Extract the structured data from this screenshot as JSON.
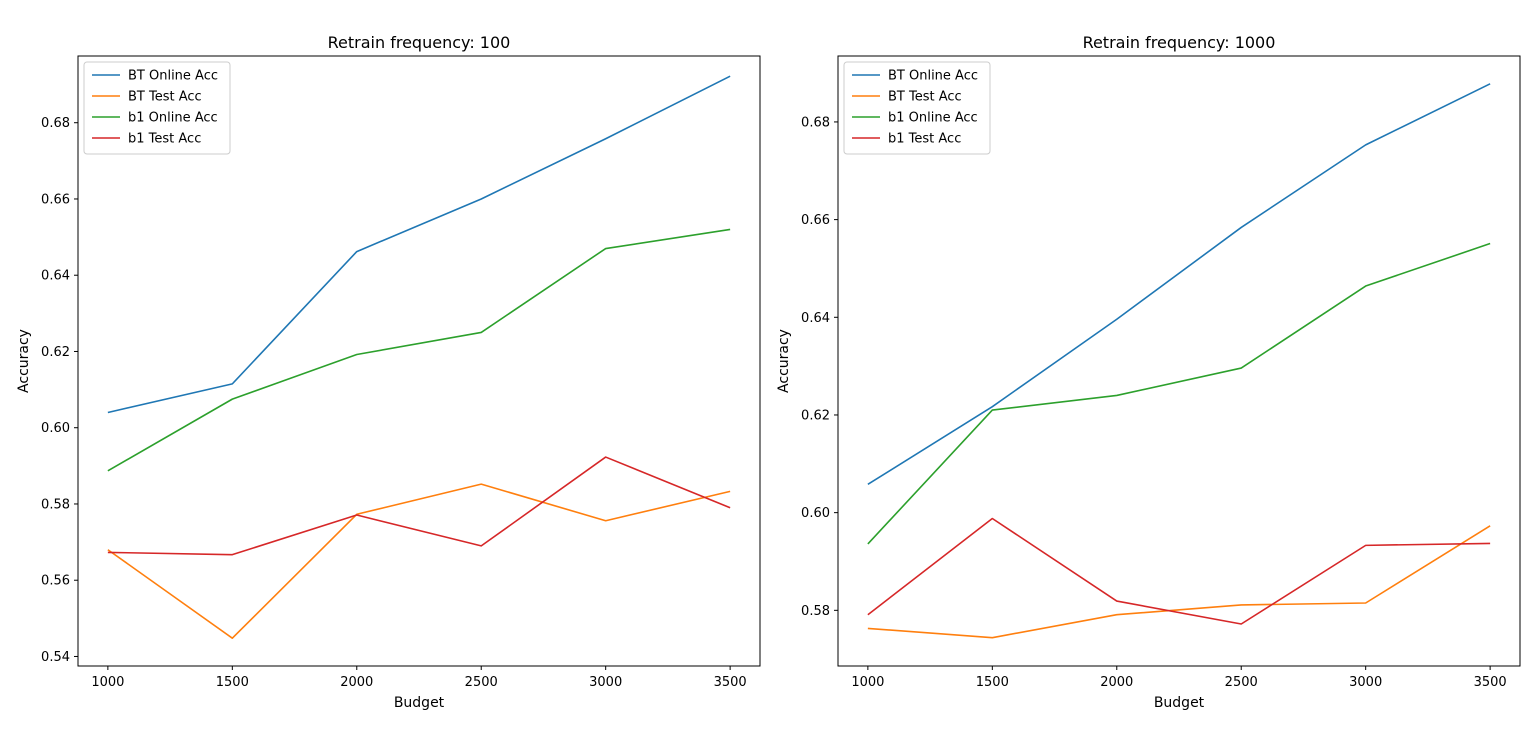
{
  "chart_data": [
    {
      "type": "line",
      "title": "Retrain frequency: 100",
      "xlabel": "Budget",
      "ylabel": "Accuracy",
      "x": [
        1000,
        1500,
        2000,
        2500,
        3000,
        3500
      ],
      "xticks": [
        1000,
        1500,
        2000,
        2500,
        3000,
        3500
      ],
      "xlim": [
        880,
        3620
      ],
      "yticks": [
        0.54,
        0.56,
        0.58,
        0.6,
        0.62,
        0.64,
        0.66,
        0.68
      ],
      "ytick_labels": [
        "0.54",
        "0.56",
        "0.58",
        "0.60",
        "0.62",
        "0.64",
        "0.66",
        "0.68"
      ],
      "ylim": [
        0.5375,
        0.6975
      ],
      "grid": false,
      "legend_position": "upper-left",
      "series": [
        {
          "name": "BT Online Acc",
          "color": "#1f77b4",
          "values": [
            0.604,
            0.6115,
            0.6462,
            0.66,
            0.6758,
            0.6922
          ]
        },
        {
          "name": "BT Test Acc",
          "color": "#ff7f0e",
          "values": [
            0.568,
            0.5448,
            0.5773,
            0.5852,
            0.5756,
            0.5833
          ]
        },
        {
          "name": "b1 Online Acc",
          "color": "#2ca02c",
          "values": [
            0.5887,
            0.6075,
            0.6192,
            0.625,
            0.647,
            0.652
          ]
        },
        {
          "name": "b1 Test Acc",
          "color": "#d62728",
          "values": [
            0.5673,
            0.5667,
            0.5771,
            0.569,
            0.5923,
            0.579
          ]
        }
      ]
    },
    {
      "type": "line",
      "title": "Retrain frequency: 1000",
      "xlabel": "Budget",
      "ylabel": "Accuracy",
      "x": [
        1000,
        1500,
        2000,
        2500,
        3000,
        3500
      ],
      "xticks": [
        1000,
        1500,
        2000,
        2500,
        3000,
        3500
      ],
      "xlim": [
        880,
        3620
      ],
      "yticks": [
        0.58,
        0.6,
        0.62,
        0.64,
        0.66,
        0.68
      ],
      "ytick_labels": [
        "0.58",
        "0.60",
        "0.62",
        "0.64",
        "0.66",
        "0.68"
      ],
      "ylim": [
        0.5686,
        0.6935
      ],
      "grid": false,
      "legend_position": "upper-left",
      "series": [
        {
          "name": "BT Online Acc",
          "color": "#1f77b4",
          "values": [
            0.6058,
            0.6217,
            0.6396,
            0.6584,
            0.6753,
            0.6878
          ]
        },
        {
          "name": "BT Test Acc",
          "color": "#ff7f0e",
          "values": [
            0.5763,
            0.5744,
            0.5791,
            0.5811,
            0.5815,
            0.5973
          ]
        },
        {
          "name": "b1 Online Acc",
          "color": "#2ca02c",
          "values": [
            0.5936,
            0.621,
            0.624,
            0.6296,
            0.6464,
            0.6551
          ]
        },
        {
          "name": "b1 Test Acc",
          "color": "#d62728",
          "values": [
            0.5791,
            0.5988,
            0.5819,
            0.5772,
            0.5933,
            0.5937
          ]
        }
      ]
    }
  ]
}
